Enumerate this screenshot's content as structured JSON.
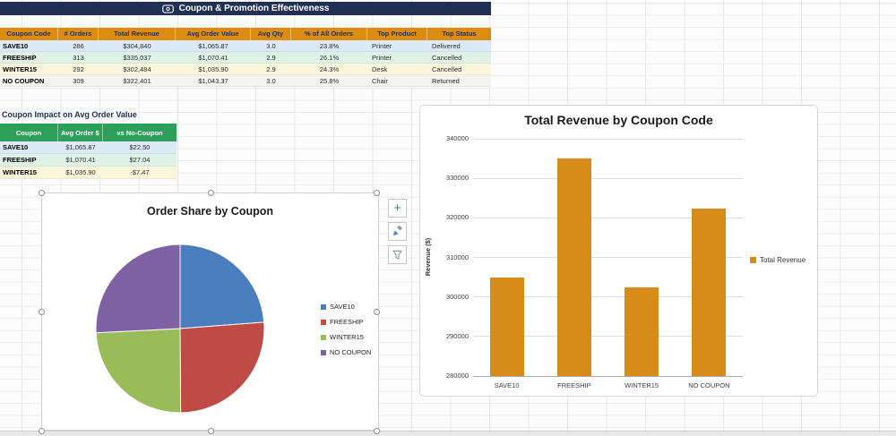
{
  "banner": {
    "title": "Coupon & Promotion Effectiveness"
  },
  "main_table": {
    "headers": [
      "Coupon Code",
      "# Orders",
      "Total Revenue",
      "Avg Order Value",
      "Avg Qty",
      "% of All Orders",
      "Top Product",
      "Top Status"
    ],
    "rows": [
      [
        "SAVE10",
        "286",
        "$304,840",
        "$1,065.87",
        "3.0",
        "23.8%",
        "Printer",
        "Delivered"
      ],
      [
        "FREESHIP",
        "313",
        "$335,037",
        "$1,070.41",
        "2.9",
        "26.1%",
        "Printer",
        "Cancelled"
      ],
      [
        "WINTER15",
        "292",
        "$302,484",
        "$1,035.90",
        "2.9",
        "24.3%",
        "Desk",
        "Cancelled"
      ],
      [
        "NO COUPON",
        "309",
        "$322,401",
        "$1,043.37",
        "3.0",
        "25.8%",
        "Chair",
        "Returned"
      ]
    ],
    "row_colors": [
      "#DCE9F6",
      "#E0F1E6",
      "#FBF5DC",
      "#F3F3F1"
    ],
    "header_bg": "#DD8C0F",
    "header_text": "#203055"
  },
  "impact_table": {
    "title": "Coupon Impact on Avg Order Value",
    "headers": [
      "Coupon",
      "Avg Order $",
      "vs No-Coupon"
    ],
    "rows": [
      [
        "SAVE10",
        "$1,065.87",
        "$22.50"
      ],
      [
        "FREESHIP",
        "$1,070.41",
        "$27.04"
      ],
      [
        "WINTER15",
        "$1,035.90",
        "-$7.47"
      ]
    ],
    "row_colors": [
      "#DCE9F6",
      "#E0F1E6",
      "#FBF5DC"
    ],
    "header_bg": "#2E9E5B"
  },
  "chart_tools": {
    "add_label": "+"
  },
  "chart_data": [
    {
      "type": "pie",
      "title": "Order Share by Coupon",
      "categories": [
        "SAVE10",
        "FREESHIP",
        "WINTER15",
        "NO COUPON"
      ],
      "values": [
        23.8,
        26.1,
        24.3,
        25.8
      ],
      "colors": [
        "#4A7EBE",
        "#BF4B47",
        "#9ABB59",
        "#7E62A3"
      ],
      "legend_position": "right"
    },
    {
      "type": "bar",
      "title": "Total Revenue by Coupon Code",
      "categories": [
        "SAVE10",
        "FREESHIP",
        "WINTER15",
        "NO COUPON"
      ],
      "series": [
        {
          "name": "Total Revenue",
          "values": [
            304840,
            335037,
            302484,
            322401
          ]
        }
      ],
      "ylabel": "Revenue ($)",
      "ylim": [
        280000,
        340000
      ],
      "ytick_step": 10000,
      "bar_color": "#D78C1A",
      "grid": true,
      "legend_position": "right"
    }
  ]
}
